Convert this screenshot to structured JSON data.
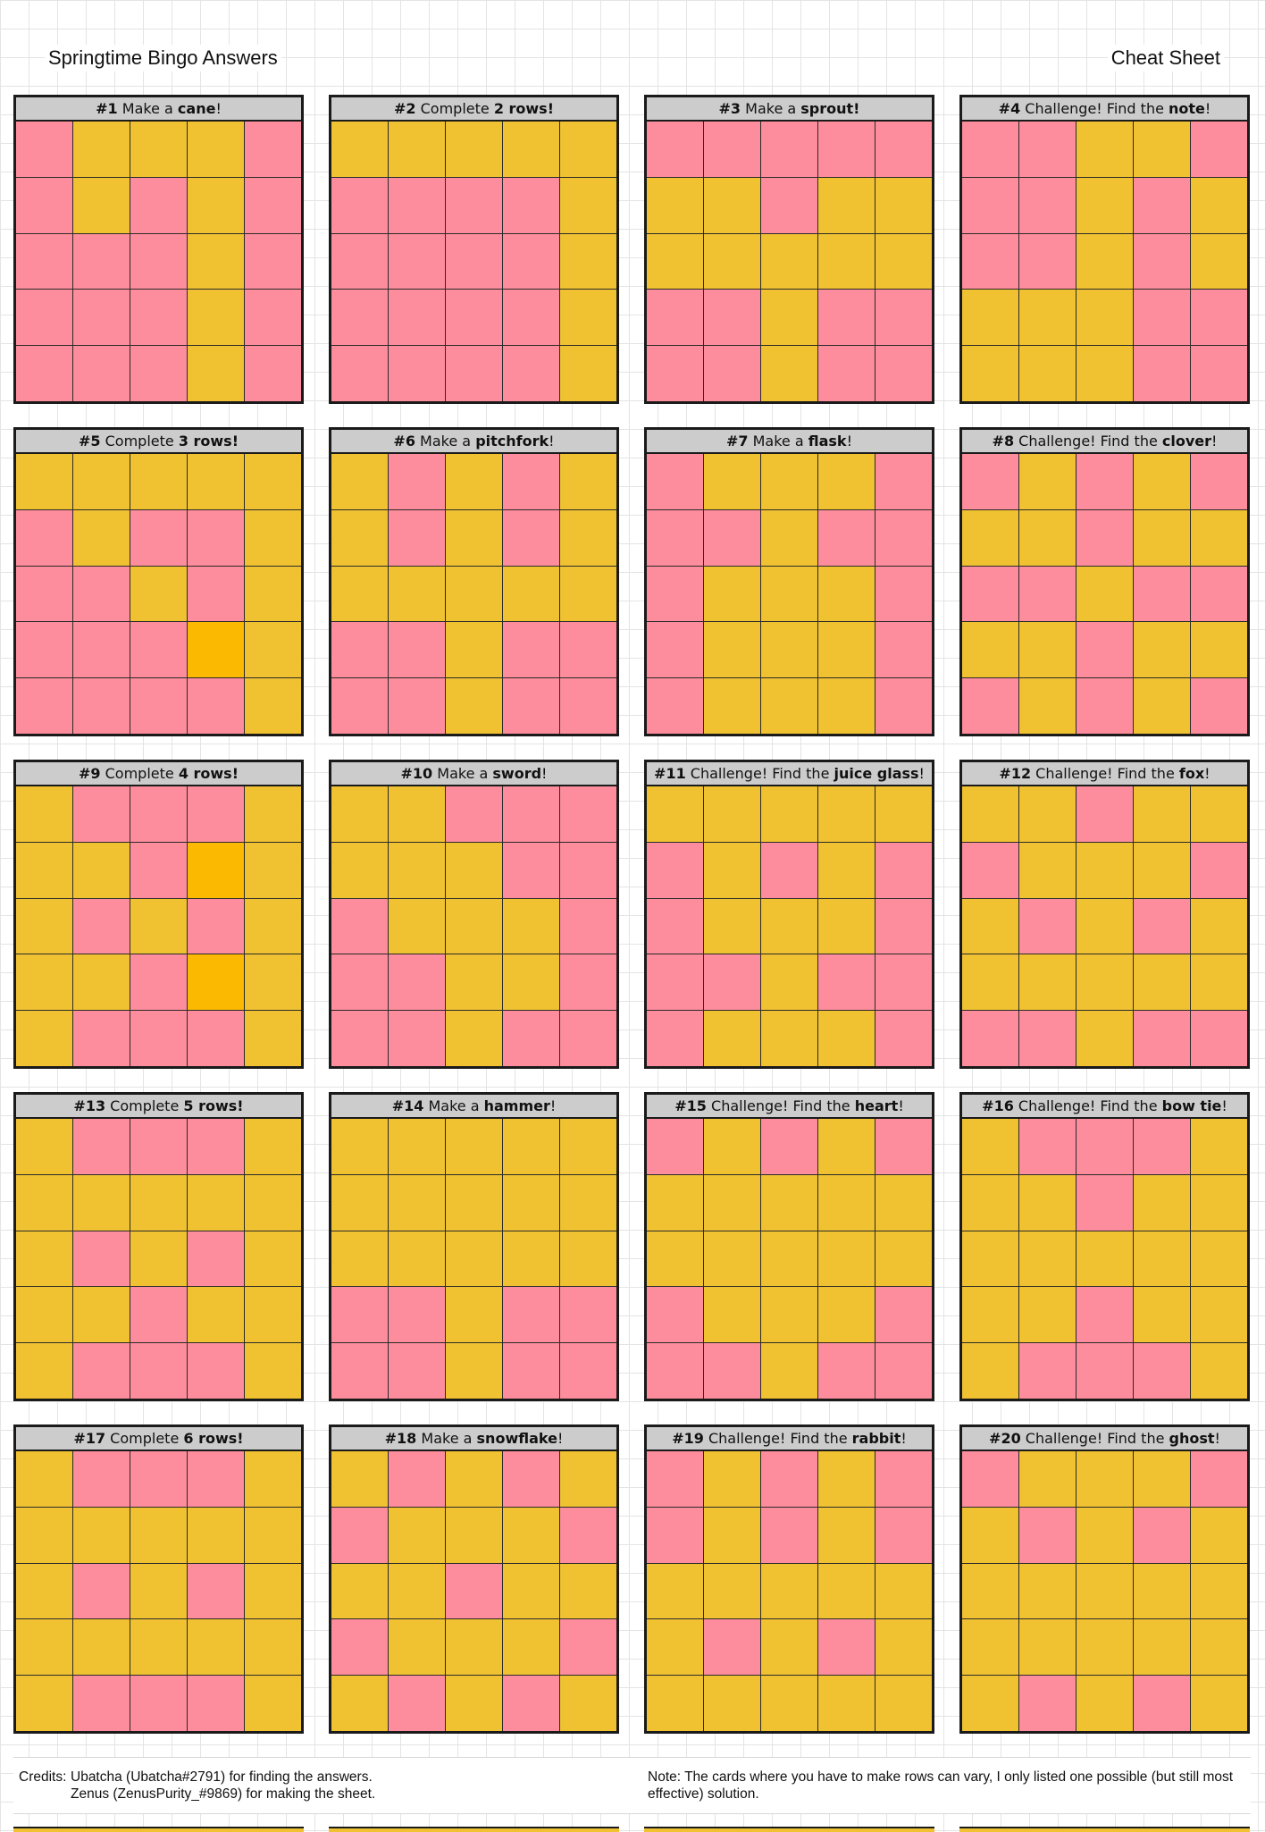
{
  "page": {
    "title": "Springtime Bingo Answers",
    "subtitle": "Cheat Sheet",
    "credits_label": "Credits:",
    "credits_line1": "Ubatcha (Ubatcha#2791) for finding the answers.",
    "credits_line2": "Zenus (ZenusPurity_#9869) for making the sheet.",
    "note": "Note: The cards where you have to make rows can vary, I only listed one possible (but still most effective) solution."
  },
  "colors": {
    "marked": "#fd8d9c",
    "unmarked": "#f0c232",
    "free": "#fcb902",
    "header": "#cccccc"
  },
  "cards": [
    {
      "num": "#1",
      "pre": " Make a ",
      "bold": "cane",
      "post": "!",
      "grid": [
        "PYYYP",
        "PYPYP",
        "PPPYP",
        "PPPYP",
        "PPPYP"
      ]
    },
    {
      "num": "#2",
      "pre": " Complete ",
      "bold": "2 rows!",
      "post": "",
      "grid": [
        "YYYYY",
        "PPPPY",
        "PPPPY",
        "PPPPY",
        "PPPPY"
      ]
    },
    {
      "num": "#3",
      "pre": " Make a ",
      "bold": "sprout!",
      "post": "",
      "grid": [
        "PPPPP",
        "YYPYY",
        "YYYYY",
        "PPYPP",
        "PPYPP"
      ]
    },
    {
      "num": "#4",
      "pre": " Challenge! Find the ",
      "bold": "note",
      "post": "!",
      "grid": [
        "PPYYP",
        "PPYPY",
        "PPYPY",
        "YYYPP",
        "YYYPP"
      ]
    },
    {
      "num": "#5",
      "pre": " Complete ",
      "bold": "3 rows!",
      "post": "",
      "grid": [
        "YYYYY",
        "PYPPY",
        "PPYPY",
        "PPPOY",
        "PPPPY"
      ]
    },
    {
      "num": "#6",
      "pre": " Make a ",
      "bold": "pitchfork",
      "post": "!",
      "grid": [
        "YPYPY",
        "YPYPY",
        "YYYYY",
        "PPYPP",
        "PPYPP"
      ]
    },
    {
      "num": "#7",
      "pre": " Make a ",
      "bold": "flask",
      "post": "!",
      "grid": [
        "PYYYP",
        "PPYPP",
        "PYYYP",
        "PYYYP",
        "PYYYP"
      ]
    },
    {
      "num": "#8",
      "pre": " Challenge! Find the ",
      "bold": "clover",
      "post": "!",
      "grid": [
        "PYPYP",
        "YYPYY",
        "PPYPP",
        "YYPYY",
        "PYPYP"
      ]
    },
    {
      "num": "#9",
      "pre": " Complete ",
      "bold": "4 rows!",
      "post": "",
      "grid": [
        "YPPPY",
        "YYPOY",
        "YPYPY",
        "YYPOY",
        "YPPPY"
      ]
    },
    {
      "num": "#10",
      "pre": " Make a ",
      "bold": "sword",
      "post": "!",
      "grid": [
        "YYPPP",
        "YYYPP",
        "PYYYP",
        "PPYYP",
        "PPYPP"
      ]
    },
    {
      "num": "#11",
      "pre": " Challenge! Find the ",
      "bold": "juice glass",
      "post": "!",
      "grid": [
        "YYYYY",
        "PYPYP",
        "PYYYP",
        "PPYPP",
        "PYYYP"
      ]
    },
    {
      "num": "#12",
      "pre": " Challenge! Find the ",
      "bold": "fox",
      "post": "!",
      "grid": [
        "YYPYY",
        "PYYYP",
        "YPYPY",
        "YYYYY",
        "PPYPP"
      ]
    },
    {
      "num": "#13",
      "pre": " Complete ",
      "bold": "5 rows!",
      "post": "",
      "grid": [
        "YPPPY",
        "YYYYY",
        "YPYPY",
        "YYPYY",
        "YPPPY"
      ]
    },
    {
      "num": "#14",
      "pre": " Make a ",
      "bold": "hammer",
      "post": "!",
      "grid": [
        "YYYYY",
        "YYYYY",
        "YYYYY",
        "PPYPP",
        "PPYPP"
      ]
    },
    {
      "num": "#15",
      "pre": " Challenge! Find the ",
      "bold": "heart",
      "post": "!",
      "grid": [
        "PYPYP",
        "YYYYY",
        "YYYYY",
        "PYYYP",
        "PPYPP"
      ]
    },
    {
      "num": "#16",
      "pre": " Challenge! Find the ",
      "bold": "bow tie",
      "post": "!",
      "grid": [
        "YPPPY",
        "YYPYY",
        "YYYYY",
        "YYPYY",
        "YPPPY"
      ]
    },
    {
      "num": "#17",
      "pre": " Complete ",
      "bold": "6 rows!",
      "post": "",
      "grid": [
        "YPPPY",
        "YYYYY",
        "YPYPY",
        "YYYYY",
        "YPPPY"
      ]
    },
    {
      "num": "#18",
      "pre": " Make a ",
      "bold": "snowflake",
      "post": "!",
      "grid": [
        "YPYPY",
        "PYYYP",
        "YYPYY",
        "PYYYP",
        "YPYPY"
      ]
    },
    {
      "num": "#19",
      "pre": " Challenge! Find the ",
      "bold": "rabbit",
      "post": "!",
      "grid": [
        "PYPYP",
        "PYPYP",
        "YYYYY",
        "YPYPY",
        "YYYYY"
      ]
    },
    {
      "num": "#20",
      "pre": " Challenge! Find the ",
      "bold": "ghost",
      "post": "!",
      "grid": [
        "PYYYP",
        "YPYPY",
        "YYYYY",
        "YYYYY",
        "YPYPY"
      ]
    }
  ]
}
